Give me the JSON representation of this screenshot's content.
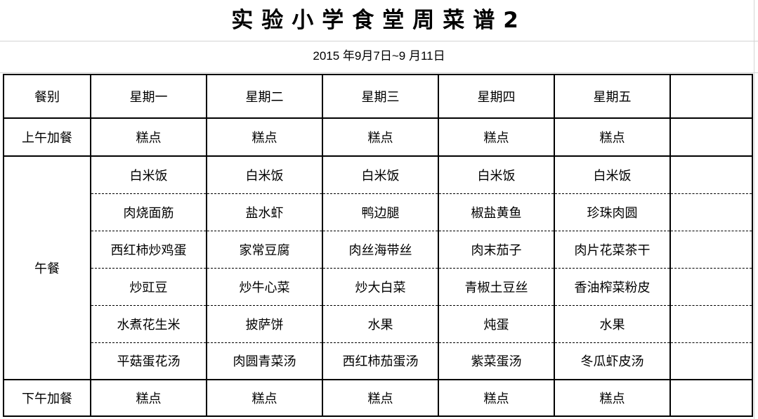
{
  "title": "实验小学食堂周菜谱2",
  "date_range": "2015 年9月7日~9 月11日",
  "header": {
    "meal_label": "餐别",
    "days": [
      "星期一",
      "星期二",
      "星期三",
      "星期四",
      "星期五",
      ""
    ]
  },
  "morning_snack": {
    "label": "上午加餐",
    "items": [
      "糕点",
      "糕点",
      "糕点",
      "糕点",
      "糕点",
      ""
    ]
  },
  "lunch": {
    "label": "午餐",
    "rows": [
      [
        "白米饭",
        "白米饭",
        "白米饭",
        "白米饭",
        "白米饭",
        ""
      ],
      [
        "肉烧面筋",
        "盐水虾",
        "鸭边腿",
        "椒盐黄鱼",
        "珍珠肉圆",
        ""
      ],
      [
        "西红柿炒鸡蛋",
        "家常豆腐",
        "肉丝海带丝",
        "肉末茄子",
        "肉片花菜茶干",
        ""
      ],
      [
        "炒豇豆",
        "炒牛心菜",
        "炒大白菜",
        "青椒土豆丝",
        "香油榨菜粉皮",
        ""
      ],
      [
        "水煮花生米",
        "披萨饼",
        "水果",
        "炖蛋",
        "水果",
        ""
      ],
      [
        "平菇蛋花汤",
        "肉圆青菜汤",
        "西红柿茄蛋汤",
        "紫菜蛋汤",
        "冬瓜虾皮汤",
        ""
      ]
    ]
  },
  "afternoon_snack": {
    "label": "下午加餐",
    "items": [
      "糕点",
      "糕点",
      "糕点",
      "糕点",
      "糕点",
      ""
    ]
  }
}
